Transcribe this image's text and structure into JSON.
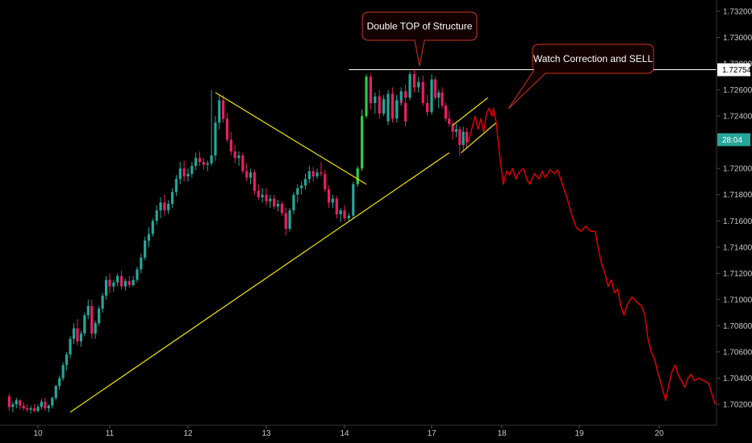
{
  "chart_data": {
    "type": "candlestick",
    "x_ticks": [
      "10",
      "11",
      "12",
      "13",
      "14",
      "17",
      "18",
      "19",
      "20"
    ],
    "y_ticks": [
      1.702,
      1.704,
      1.706,
      1.708,
      1.71,
      1.712,
      1.714,
      1.716,
      1.718,
      1.72,
      1.724,
      1.726,
      1.728,
      1.73,
      1.732
    ],
    "y_tick_labels": [
      "1.70200",
      "1.70400",
      "1.70600",
      "1.70800",
      "1.71000",
      "1.71200",
      "1.71400",
      "1.71600",
      "1.71800",
      "1.72000",
      "1.72400",
      "1.72600",
      "1.72800",
      "1.73000",
      "1.73200"
    ],
    "ylim": [
      1.7013,
      1.7335
    ],
    "xlim": [
      9.6,
      20.75
    ],
    "colors": {
      "up": "#26a69a",
      "up_bright": "#2ecc40",
      "down": "#e91e63",
      "trendline": "#f2e600",
      "projection": "#e00000",
      "resistance": "#ffffff",
      "callout_border": "#cc3322",
      "callout_fill": "#130000",
      "price_tag": "#ffffff",
      "timer_tag": "#26a69a",
      "axis_text": "#c8c8c8"
    },
    "candles": [
      [
        9.6,
        1.7026,
        1.7028,
        1.7015,
        1.7018
      ],
      [
        9.65,
        1.7018,
        1.7022,
        1.7014,
        1.702
      ],
      [
        9.7,
        1.702,
        1.7025,
        1.7017,
        1.7023
      ],
      [
        9.75,
        1.7023,
        1.7024,
        1.7016,
        1.7019
      ],
      [
        9.8,
        1.7019,
        1.7022,
        1.7015,
        1.7017
      ],
      [
        9.85,
        1.7017,
        1.702,
        1.7014,
        1.7016
      ],
      [
        9.9,
        1.7016,
        1.7019,
        1.7013,
        1.7017
      ],
      [
        9.95,
        1.7017,
        1.702,
        1.7014,
        1.7015
      ],
      [
        10.0,
        1.7015,
        1.702,
        1.7014,
        1.7018
      ],
      [
        10.05,
        1.7018,
        1.7024,
        1.7016,
        1.7022
      ],
      [
        10.1,
        1.7022,
        1.7025,
        1.7015,
        1.7017
      ],
      [
        10.15,
        1.7017,
        1.702,
        1.7014,
        1.7019
      ],
      [
        10.2,
        1.7019,
        1.7026,
        1.7017,
        1.7025
      ],
      [
        10.25,
        1.7025,
        1.7035,
        1.7023,
        1.7034
      ],
      [
        10.3,
        1.7034,
        1.7042,
        1.7031,
        1.704
      ],
      [
        10.35,
        1.704,
        1.7052,
        1.7038,
        1.705
      ],
      [
        10.4,
        1.705,
        1.706,
        1.7046,
        1.7058
      ],
      [
        10.45,
        1.7058,
        1.7072,
        1.7055,
        1.707
      ],
      [
        10.5,
        1.707,
        1.7082,
        1.7066,
        1.7078
      ],
      [
        10.55,
        1.7078,
        1.7085,
        1.7065,
        1.7068
      ],
      [
        10.6,
        1.7068,
        1.7076,
        1.7064,
        1.7074
      ],
      [
        10.65,
        1.7074,
        1.709,
        1.7072,
        1.7088
      ],
      [
        10.7,
        1.7088,
        1.71,
        1.7085,
        1.7095
      ],
      [
        10.75,
        1.7095,
        1.71,
        1.707,
        1.7074
      ],
      [
        10.8,
        1.7074,
        1.7084,
        1.707,
        1.7082
      ],
      [
        10.85,
        1.7082,
        1.7095,
        1.708,
        1.7093
      ],
      [
        10.9,
        1.7093,
        1.7105,
        1.709,
        1.7103
      ],
      [
        10.95,
        1.7103,
        1.7118,
        1.71,
        1.7115
      ],
      [
        11.0,
        1.7115,
        1.712,
        1.7105,
        1.711
      ],
      [
        11.05,
        1.711,
        1.7115,
        1.7106,
        1.7113
      ],
      [
        11.1,
        1.7113,
        1.712,
        1.711,
        1.7118
      ],
      [
        11.15,
        1.7118,
        1.7122,
        1.7108,
        1.711
      ],
      [
        11.2,
        1.711,
        1.7116,
        1.7107,
        1.7114
      ],
      [
        11.25,
        1.7114,
        1.7118,
        1.7109,
        1.7111
      ],
      [
        11.3,
        1.7111,
        1.7118,
        1.711,
        1.7115
      ],
      [
        11.35,
        1.7115,
        1.7125,
        1.7113,
        1.7123
      ],
      [
        11.4,
        1.7123,
        1.7135,
        1.712,
        1.7132
      ],
      [
        11.45,
        1.7132,
        1.7148,
        1.713,
        1.7145
      ],
      [
        11.5,
        1.7145,
        1.7155,
        1.714,
        1.715
      ],
      [
        11.55,
        1.715,
        1.7162,
        1.7148,
        1.716
      ],
      [
        11.6,
        1.716,
        1.7172,
        1.7157,
        1.7168
      ],
      [
        11.65,
        1.7168,
        1.7178,
        1.7162,
        1.7174
      ],
      [
        11.7,
        1.7174,
        1.718,
        1.7164,
        1.7168
      ],
      [
        11.75,
        1.7168,
        1.7176,
        1.7165,
        1.7173
      ],
      [
        11.8,
        1.7173,
        1.7185,
        1.717,
        1.7182
      ],
      [
        11.85,
        1.7182,
        1.7195,
        1.7179,
        1.7192
      ],
      [
        11.9,
        1.7192,
        1.7205,
        1.7188,
        1.72
      ],
      [
        11.95,
        1.72,
        1.7206,
        1.719,
        1.7194
      ],
      [
        12.0,
        1.7194,
        1.72,
        1.719,
        1.7196
      ],
      [
        12.05,
        1.7196,
        1.7205,
        1.7193,
        1.7202
      ],
      [
        12.1,
        1.7202,
        1.7212,
        1.7199,
        1.7208
      ],
      [
        12.15,
        1.7208,
        1.7213,
        1.7202,
        1.7205
      ],
      [
        12.2,
        1.7205,
        1.7208,
        1.7199,
        1.7203
      ],
      [
        12.25,
        1.7203,
        1.7206,
        1.7198,
        1.7204
      ],
      [
        12.3,
        1.7204,
        1.726,
        1.7202,
        1.721
      ],
      [
        12.35,
        1.721,
        1.724,
        1.7206,
        1.7235
      ],
      [
        12.4,
        1.7235,
        1.7256,
        1.723,
        1.7252
      ],
      [
        12.45,
        1.7252,
        1.7256,
        1.7235,
        1.7238
      ],
      [
        12.5,
        1.7238,
        1.7242,
        1.722,
        1.7222
      ],
      [
        12.55,
        1.7222,
        1.7228,
        1.721,
        1.7213
      ],
      [
        12.6,
        1.7213,
        1.7218,
        1.7204,
        1.7208
      ],
      [
        12.65,
        1.7208,
        1.7213,
        1.7202,
        1.721
      ],
      [
        12.7,
        1.721,
        1.7212,
        1.7196,
        1.7198
      ],
      [
        12.75,
        1.7198,
        1.7204,
        1.719,
        1.7193
      ],
      [
        12.8,
        1.7193,
        1.72,
        1.7188,
        1.7197
      ],
      [
        12.85,
        1.7197,
        1.7199,
        1.718,
        1.7183
      ],
      [
        12.9,
        1.7183,
        1.7188,
        1.7176,
        1.7178
      ],
      [
        12.95,
        1.7178,
        1.7185,
        1.7174,
        1.718
      ],
      [
        13.0,
        1.718,
        1.7185,
        1.7172,
        1.7175
      ],
      [
        13.05,
        1.7175,
        1.718,
        1.717,
        1.7177
      ],
      [
        13.1,
        1.7177,
        1.718,
        1.7169,
        1.7171
      ],
      [
        13.15,
        1.7171,
        1.7176,
        1.7167,
        1.7173
      ],
      [
        13.2,
        1.7173,
        1.7175,
        1.7164,
        1.7166
      ],
      [
        13.25,
        1.7166,
        1.717,
        1.7149,
        1.7154
      ],
      [
        13.3,
        1.7154,
        1.717,
        1.7152,
        1.7168
      ],
      [
        13.35,
        1.7168,
        1.7182,
        1.7165,
        1.718
      ],
      [
        13.4,
        1.718,
        1.7188,
        1.7174,
        1.7185
      ],
      [
        13.45,
        1.7185,
        1.719,
        1.718,
        1.7187
      ],
      [
        13.5,
        1.7187,
        1.7196,
        1.7184,
        1.7192
      ],
      [
        13.55,
        1.7192,
        1.7202,
        1.7189,
        1.7198
      ],
      [
        13.6,
        1.7198,
        1.7201,
        1.719,
        1.7194
      ],
      [
        13.65,
        1.7194,
        1.72,
        1.7192,
        1.7197
      ],
      [
        13.7,
        1.7197,
        1.7205,
        1.7194,
        1.7196
      ],
      [
        13.75,
        1.7196,
        1.7199,
        1.7182,
        1.7184
      ],
      [
        13.8,
        1.7184,
        1.7187,
        1.717,
        1.7174
      ],
      [
        13.85,
        1.7174,
        1.718,
        1.717,
        1.7177
      ],
      [
        13.9,
        1.7177,
        1.7179,
        1.7162,
        1.7165
      ],
      [
        13.95,
        1.7165,
        1.717,
        1.7159,
        1.7168
      ],
      [
        14.0,
        1.7168,
        1.7172,
        1.716,
        1.7162
      ],
      [
        14.05,
        1.7162,
        1.7166,
        1.716,
        1.7164
      ],
      [
        14.1,
        1.7164,
        1.719,
        1.7162,
        1.7188
      ],
      [
        14.15,
        1.7188,
        1.7202,
        1.7186,
        1.72
      ],
      [
        14.2,
        1.72,
        1.7245,
        1.7198,
        1.724
      ],
      [
        14.25,
        1.724,
        1.7272,
        1.7238,
        1.727
      ],
      [
        14.3,
        1.727,
        1.7272,
        1.7245,
        1.725
      ],
      [
        14.35,
        1.725,
        1.7258,
        1.7242,
        1.7255
      ],
      [
        14.4,
        1.7255,
        1.726,
        1.7238,
        1.7242
      ],
      [
        14.45,
        1.7242,
        1.7256,
        1.724,
        1.7253
      ],
      [
        14.5,
        1.7253,
        1.726,
        1.7246,
        1.7248
      ],
      [
        14.55,
        1.7248,
        1.7252,
        1.7235,
        1.7238
      ],
      [
        14.6,
        1.7238,
        1.7256,
        1.7235,
        1.7252
      ],
      [
        14.65,
        1.7252,
        1.7258,
        1.7248,
        1.725
      ],
      [
        14.7,
        1.725,
        1.7252,
        1.7232,
        1.7236
      ],
      [
        16.5,
        1.7236,
        1.726,
        1.7233,
        1.7257
      ],
      [
        16.55,
        1.7257,
        1.7262,
        1.7242,
        1.7244
      ],
      [
        16.6,
        1.7244,
        1.7256,
        1.724,
        1.7252
      ],
      [
        16.65,
        1.7252,
        1.7262,
        1.7248,
        1.7259
      ],
      [
        16.7,
        1.7259,
        1.7264,
        1.7252,
        1.7254
      ],
      [
        16.75,
        1.7254,
        1.7274,
        1.7252,
        1.7272
      ],
      [
        16.8,
        1.7272,
        1.7275,
        1.7258,
        1.7262
      ],
      [
        16.85,
        1.7262,
        1.727,
        1.7258,
        1.7266
      ],
      [
        16.9,
        1.7266,
        1.7271,
        1.7248,
        1.725
      ],
      [
        16.95,
        1.725,
        1.7256,
        1.724,
        1.7243
      ],
      [
        17.0,
        1.7243,
        1.7272,
        1.7241,
        1.7268
      ],
      [
        17.05,
        1.7268,
        1.727,
        1.7252,
        1.7254
      ],
      [
        17.1,
        1.7254,
        1.726,
        1.7246,
        1.7258
      ],
      [
        17.15,
        1.7258,
        1.7262,
        1.7246,
        1.7248
      ],
      [
        17.2,
        1.7248,
        1.725,
        1.7236,
        1.7238
      ],
      [
        17.25,
        1.7238,
        1.7244,
        1.7232,
        1.7234
      ],
      [
        17.3,
        1.7234,
        1.7236,
        1.7222,
        1.7228
      ],
      [
        17.35,
        1.7228,
        1.7234,
        1.7224,
        1.723
      ],
      [
        17.4,
        1.723,
        1.7232,
        1.721,
        1.7218
      ],
      [
        17.45,
        1.7218,
        1.7232,
        1.7214,
        1.7228
      ],
      [
        17.5,
        1.7228,
        1.7231,
        1.7215,
        1.722
      ]
    ],
    "projection": [
      [
        17.52,
        1.722
      ],
      [
        17.58,
        1.7232
      ],
      [
        17.62,
        1.724
      ],
      [
        17.66,
        1.723
      ],
      [
        17.7,
        1.7238
      ],
      [
        17.74,
        1.7228
      ],
      [
        17.78,
        1.7242
      ],
      [
        17.82,
        1.7246
      ],
      [
        17.86,
        1.724
      ],
      [
        17.88,
        1.7246
      ],
      [
        17.92,
        1.7235
      ],
      [
        17.95,
        1.722
      ],
      [
        17.98,
        1.7205
      ],
      [
        18.02,
        1.7188
      ],
      [
        18.06,
        1.7198
      ],
      [
        18.1,
        1.7195
      ],
      [
        18.14,
        1.72
      ],
      [
        18.18,
        1.7192
      ],
      [
        18.22,
        1.7197
      ],
      [
        18.28,
        1.72
      ],
      [
        18.32,
        1.7192
      ],
      [
        18.36,
        1.7188
      ],
      [
        18.42,
        1.7196
      ],
      [
        18.48,
        1.7192
      ],
      [
        18.52,
        1.7198
      ],
      [
        18.56,
        1.7193
      ],
      [
        18.62,
        1.7199
      ],
      [
        18.68,
        1.7196
      ],
      [
        18.72,
        1.7199
      ],
      [
        18.78,
        1.7188
      ],
      [
        18.84,
        1.7178
      ],
      [
        18.9,
        1.7165
      ],
      [
        18.96,
        1.7155
      ],
      [
        19.02,
        1.7152
      ],
      [
        19.08,
        1.7156
      ],
      [
        19.14,
        1.7152
      ],
      [
        19.2,
        1.7152
      ],
      [
        19.24,
        1.7138
      ],
      [
        19.28,
        1.7127
      ],
      [
        19.32,
        1.712
      ],
      [
        19.36,
        1.711
      ],
      [
        19.4,
        1.7115
      ],
      [
        19.44,
        1.7105
      ],
      [
        19.48,
        1.7108
      ],
      [
        19.52,
        1.7095
      ],
      [
        19.56,
        1.7088
      ],
      [
        19.6,
        1.7096
      ],
      [
        19.66,
        1.7102
      ],
      [
        19.72,
        1.7098
      ],
      [
        19.78,
        1.7095
      ],
      [
        19.82,
        1.7088
      ],
      [
        19.86,
        1.707
      ],
      [
        19.9,
        1.706
      ],
      [
        19.94,
        1.7055
      ],
      [
        19.98,
        1.7045
      ],
      [
        20.04,
        1.7032
      ],
      [
        20.08,
        1.7023
      ],
      [
        20.12,
        1.7035
      ],
      [
        20.16,
        1.7045
      ],
      [
        20.2,
        1.705
      ],
      [
        20.24,
        1.7042
      ],
      [
        20.28,
        1.7038
      ],
      [
        20.32,
        1.7033
      ],
      [
        20.36,
        1.704
      ],
      [
        20.4,
        1.7043
      ],
      [
        20.44,
        1.7038
      ],
      [
        20.5,
        1.704
      ],
      [
        20.56,
        1.7038
      ],
      [
        20.62,
        1.7036
      ],
      [
        20.66,
        1.7028
      ],
      [
        20.7,
        1.702
      ]
    ],
    "trendlines": [
      {
        "from": [
          10.45,
          1.7014
        ],
        "to": [
          17.25,
          1.7212
        ]
      },
      {
        "from": [
          12.35,
          1.7258
        ],
        "to": [
          14.25,
          1.7188
        ]
      },
      {
        "from": [
          17.3,
          1.7233
        ],
        "to": [
          17.8,
          1.7254
        ]
      },
      {
        "from": [
          17.42,
          1.7212
        ],
        "to": [
          17.92,
          1.7235
        ]
      }
    ],
    "resistance": {
      "from": 14.05,
      "to": 20.75,
      "y": 1.72754
    },
    "annotations": [
      {
        "text": "Double TOP  of Structure",
        "anchor": [
          16.85,
          1.7278
        ]
      },
      {
        "text": "Watch Correction and SELL",
        "anchor": [
          17.92,
          1.7248
        ]
      }
    ],
    "price_tags": [
      {
        "label": "1.72754",
        "y": 1.72754,
        "style": "price"
      },
      {
        "label": "28:04",
        "y": 1.7222,
        "style": "timer"
      }
    ]
  }
}
